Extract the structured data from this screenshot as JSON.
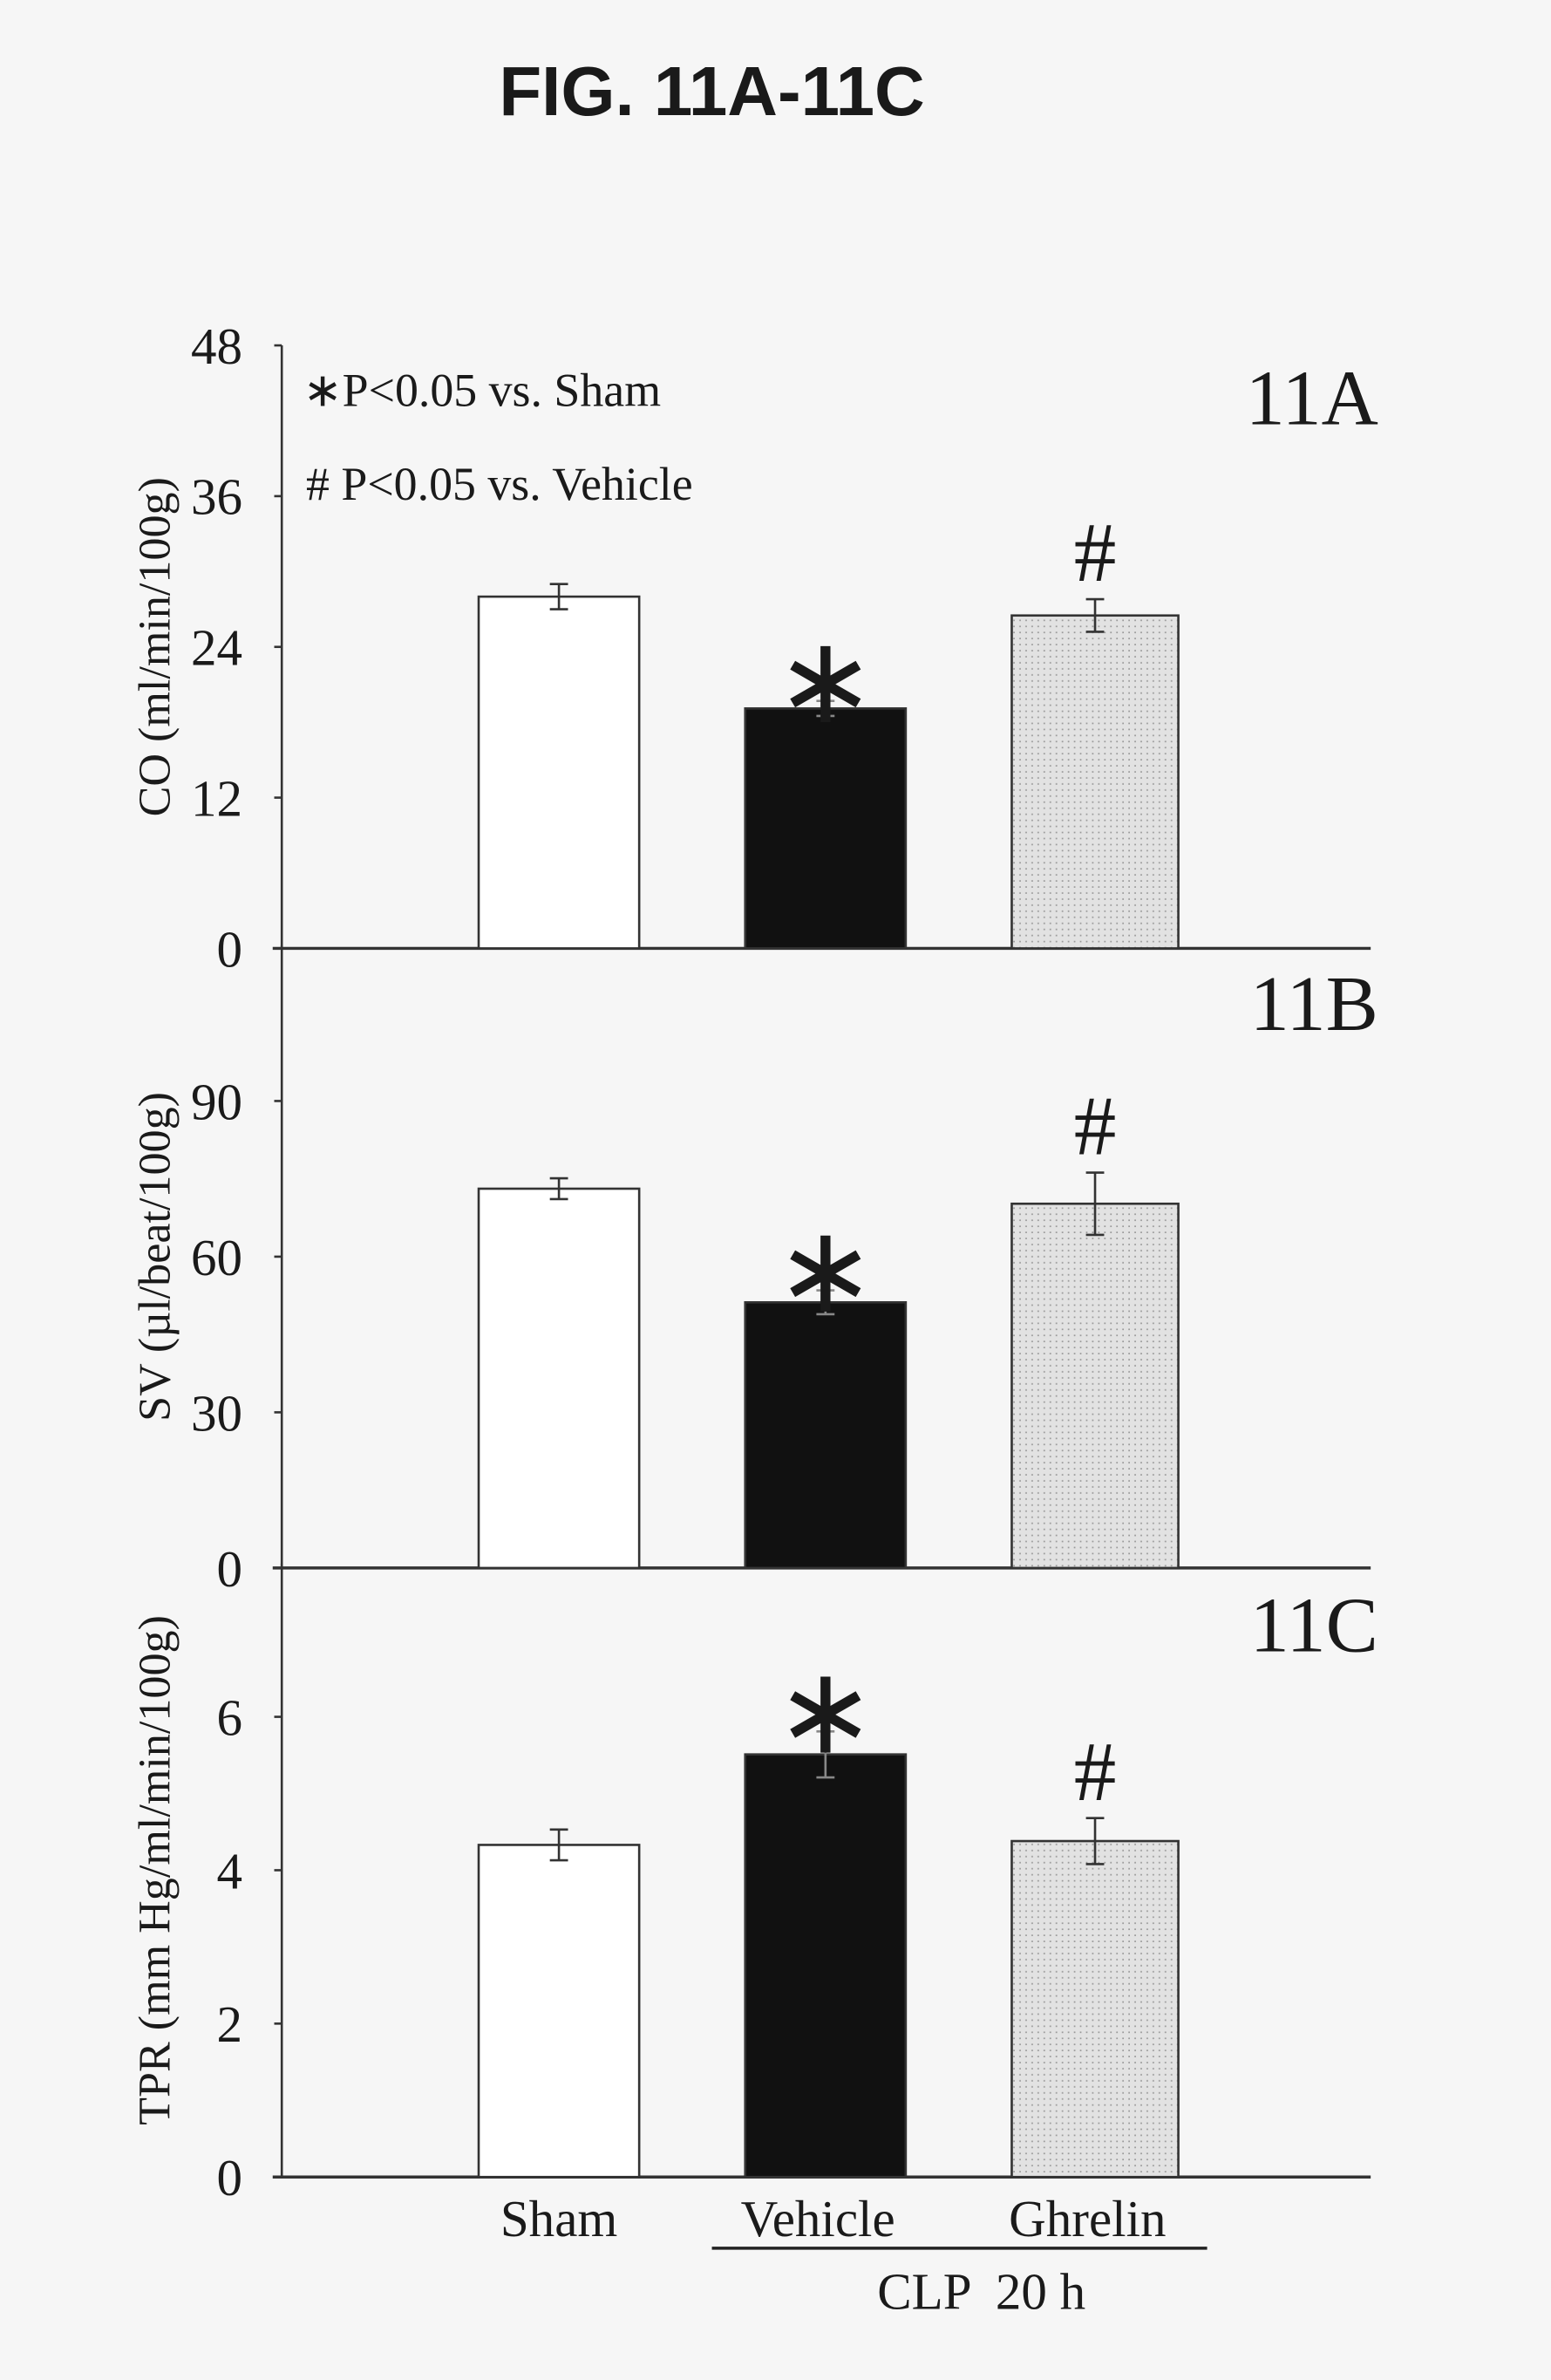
{
  "title": "FIG. 11A-11C",
  "legend": {
    "star": "∗P<0.05 vs. Sham",
    "hash": "# P<0.05 vs. Vehicle"
  },
  "categories": [
    "Sham",
    "Vehicle",
    "Ghrelin"
  ],
  "group_label": "CLP  20 h",
  "colors": {
    "Sham": "#ffffff",
    "Vehicle": "#111111",
    "Ghrelin": "#dcdcdc"
  },
  "chart_data": [
    {
      "type": "bar",
      "panel": "11A",
      "ylabel": "CO (ml/min/100g)",
      "ylim": [
        0,
        48
      ],
      "yticks": [
        "0",
        "12",
        "24",
        "36",
        "48"
      ],
      "categories": [
        "Sham",
        "Vehicle",
        "Ghrelin"
      ],
      "values": [
        28.0,
        19.1,
        26.5
      ],
      "errors": [
        1.0,
        0.6,
        1.3
      ],
      "markers": [
        "",
        "*",
        "#"
      ]
    },
    {
      "type": "bar",
      "panel": "11B",
      "ylabel": "SV (µl/beat/100g)",
      "ylim": [
        0,
        120
      ],
      "yticks": [
        "0",
        "30",
        "60",
        "90"
      ],
      "categories": [
        "Sham",
        "Vehicle",
        "Ghrelin"
      ],
      "values": [
        73.1,
        51.2,
        70.2
      ],
      "errors": [
        2.0,
        2.3,
        6.0
      ],
      "markers": [
        "",
        "*",
        "#"
      ]
    },
    {
      "type": "bar",
      "panel": "11C",
      "ylabel": "TPR (mm Hg/ml/min/100g)",
      "ylim": [
        0,
        8
      ],
      "yticks": [
        "0",
        "2",
        "4",
        "6"
      ],
      "categories": [
        "Sham",
        "Vehicle",
        "Ghrelin"
      ],
      "values": [
        4.33,
        5.51,
        4.38
      ],
      "errors": [
        0.2,
        0.3,
        0.3
      ],
      "markers": [
        "",
        "*",
        "#"
      ]
    }
  ]
}
